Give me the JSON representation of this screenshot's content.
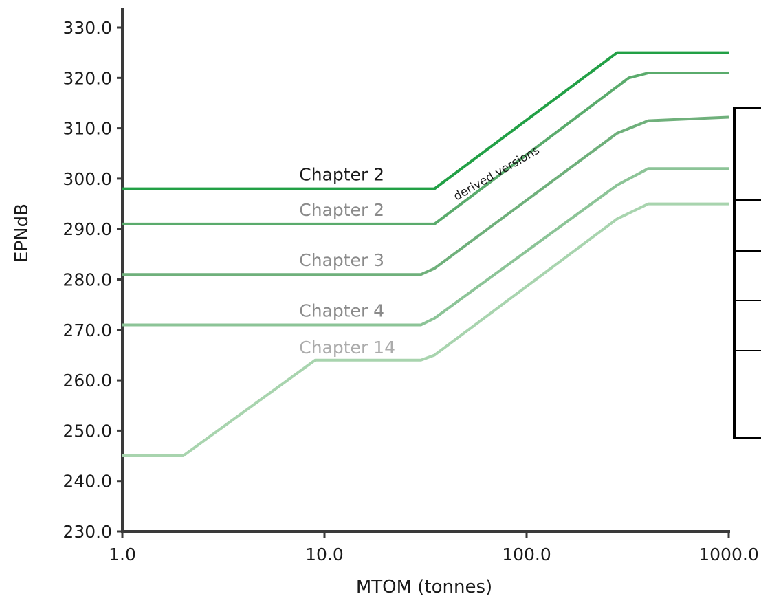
{
  "chart_data": {
    "type": "line",
    "xlabel": "MTOM (tonnes)",
    "ylabel": "EPNdB",
    "xscale": "log",
    "xlim": [
      1,
      1000
    ],
    "ylim": [
      230,
      330
    ],
    "xticks": [
      "1.0",
      "10.0",
      "100.0",
      "1000.0"
    ],
    "yticks": [
      "230.0",
      "240.0",
      "250.0",
      "260.0",
      "270.0",
      "280.0",
      "290.0",
      "300.0",
      "310.0",
      "320.0",
      "330.0"
    ],
    "series": [
      {
        "name": "Chapter 2",
        "color": "#22a046",
        "label_color": "#1a1a1a",
        "points": [
          [
            1,
            298
          ],
          [
            35,
            298
          ],
          [
            280,
            325
          ],
          [
            1000,
            325
          ]
        ]
      },
      {
        "name": "Chapter 2",
        "color": "#5aab6c",
        "label_color": "#8a8a8a",
        "points": [
          [
            1,
            291
          ],
          [
            35,
            291
          ],
          [
            320,
            320
          ],
          [
            400,
            321
          ],
          [
            1000,
            321
          ]
        ]
      },
      {
        "name": "Chapter 3",
        "color": "#6fb07b",
        "label_color": "#8a8a8a",
        "points": [
          [
            1,
            281
          ],
          [
            30,
            281
          ],
          [
            35,
            282.2
          ],
          [
            280,
            309
          ],
          [
            400,
            311.5
          ],
          [
            1000,
            312.2
          ]
        ]
      },
      {
        "name": "Chapter 4",
        "color": "#8cc497",
        "label_color": "#8a8a8a",
        "points": [
          [
            1,
            271
          ],
          [
            30,
            271
          ],
          [
            35,
            272.3
          ],
          [
            280,
            298.7
          ],
          [
            400,
            302
          ],
          [
            1000,
            302
          ]
        ]
      },
      {
        "name": "Chapter 14",
        "color": "#a8d4ae",
        "label_color": "#ababab",
        "points": [
          [
            1,
            245
          ],
          [
            2,
            245
          ],
          [
            9,
            264
          ],
          [
            30,
            264
          ],
          [
            35,
            265
          ],
          [
            280,
            292
          ],
          [
            400,
            295
          ],
          [
            1000,
            295
          ]
        ]
      }
    ],
    "annotations": [
      {
        "text": "derived versions"
      }
    ],
    "grid": false,
    "legend": "none"
  }
}
